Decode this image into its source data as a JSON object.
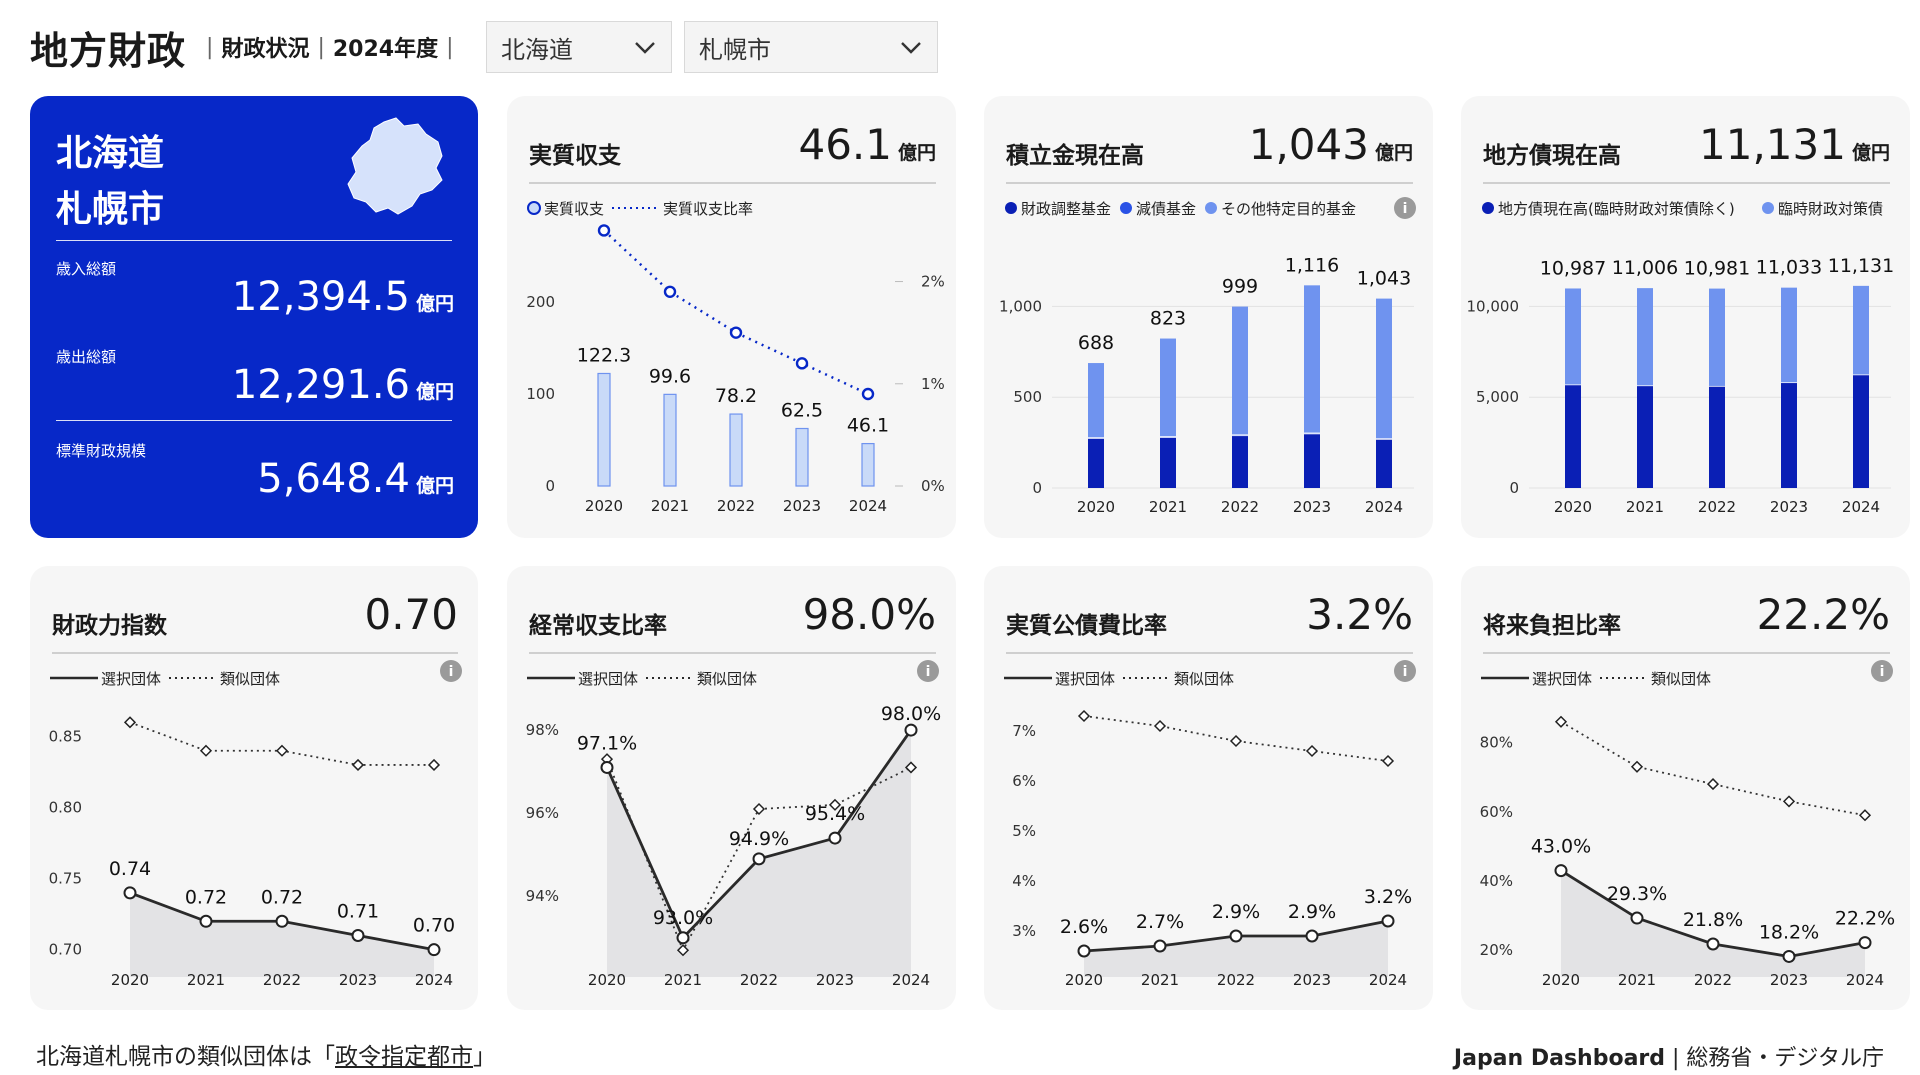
{
  "header": {
    "title": "地方財政",
    "section": "財政状況",
    "year": "2024年度",
    "prefecture_select": "北海道",
    "city_select": "札幌市"
  },
  "summary": {
    "prefecture": "北海道",
    "city": "札幌市",
    "revenue_label": "歳入総額",
    "revenue_value": "12,394.5",
    "expenditure_label": "歳出総額",
    "expenditure_value": "12,291.6",
    "standard_label": "標準財政規模",
    "standard_value": "5,648.4",
    "unit": "億円"
  },
  "cards": {
    "real_balance": {
      "title": "実質収支",
      "value": "46.1",
      "unit": "億円"
    },
    "reserve_fund": {
      "title": "積立金現在高",
      "value": "1,043",
      "unit": "億円"
    },
    "local_bond": {
      "title": "地方債現在高",
      "value": "11,131",
      "unit": "億円"
    },
    "fiscal_power": {
      "title": "財政力指数",
      "value": "0.70"
    },
    "ordinary_ratio": {
      "title": "経常収支比率",
      "value": "98.0%"
    },
    "debt_service": {
      "title": "実質公債費比率",
      "value": "3.2%"
    },
    "future_burden": {
      "title": "将来負担比率",
      "value": "22.2%"
    }
  },
  "colors": {
    "brand_blue": "#0728c8",
    "dark_blue": "#0a1fb5",
    "light_blue": "#6f93ef",
    "pale_blue": "#c9daf8",
    "line_dark": "#2a2a2a"
  },
  "chart_data": [
    {
      "id": "real_balance",
      "type": "bar",
      "categories": [
        "2020",
        "2021",
        "2022",
        "2023",
        "2024"
      ],
      "series": [
        {
          "name": "実質収支",
          "values": [
            122.3,
            99.6,
            78.2,
            62.5,
            46.1
          ]
        },
        {
          "name": "実質収支比率",
          "values": [
            2.5,
            1.9,
            1.5,
            1.2,
            0.9
          ]
        }
      ],
      "data_labels": [
        "122.3",
        "99.6",
        "78.2",
        "62.5",
        "46.1"
      ],
      "ylim": [
        0,
        250
      ],
      "yticks": [
        0,
        100,
        200
      ],
      "ytick_labels": [
        "0",
        "100",
        "200"
      ],
      "y2lim": [
        0,
        2.25
      ],
      "y2ticks": [
        0,
        1,
        2
      ],
      "y2tick_labels": [
        "0%",
        "1%",
        "2%"
      ]
    },
    {
      "id": "reserve_fund",
      "type": "bar",
      "stacked": true,
      "categories": [
        "2020",
        "2021",
        "2022",
        "2023",
        "2024"
      ],
      "series": [
        {
          "name": "財政調整基金",
          "values": [
            275,
            280,
            290,
            300,
            270
          ]
        },
        {
          "name": "減債基金",
          "values": [
            5,
            5,
            5,
            5,
            5
          ]
        },
        {
          "name": "その他特定目的基金",
          "values": [
            408,
            538,
            704,
            811,
            768
          ]
        }
      ],
      "data_labels": [
        "688",
        "823",
        "999",
        "1,116",
        "1,043"
      ],
      "ylim": [
        0,
        1250
      ],
      "yticks": [
        0,
        500,
        1000
      ],
      "ytick_labels": [
        "0",
        "500",
        "1,000"
      ]
    },
    {
      "id": "local_bond",
      "type": "bar",
      "stacked": true,
      "categories": [
        "2020",
        "2021",
        "2022",
        "2023",
        "2024"
      ],
      "series": [
        {
          "name": "地方債現在高(臨時財政対策債除く)",
          "values": [
            5700,
            5650,
            5620,
            5820,
            6250
          ]
        },
        {
          "name": "臨時財政対策債",
          "values": [
            5287,
            5356,
            5361,
            5213,
            4881
          ]
        }
      ],
      "data_labels": [
        "10,987",
        "11,006",
        "10,981",
        "11,033",
        "11,131"
      ],
      "ylim": [
        0,
        12500
      ],
      "yticks": [
        0,
        5000,
        10000
      ],
      "ytick_labels": [
        "0",
        "5,000",
        "10,000"
      ]
    },
    {
      "id": "fiscal_power",
      "type": "line",
      "categories": [
        "2020",
        "2021",
        "2022",
        "2023",
        "2024"
      ],
      "series": [
        {
          "name": "選択団体",
          "values": [
            0.74,
            0.72,
            0.72,
            0.71,
            0.7
          ]
        },
        {
          "name": "類似団体",
          "values": [
            0.86,
            0.84,
            0.84,
            0.83,
            0.83
          ]
        }
      ],
      "data_labels": [
        "0.74",
        "0.72",
        "0.72",
        "0.71",
        "0.70"
      ],
      "ylim": [
        0.685,
        0.875
      ],
      "yticks": [
        0.7,
        0.75,
        0.8,
        0.85
      ],
      "ytick_labels": [
        "0.70",
        "0.75",
        "0.80",
        "0.85"
      ]
    },
    {
      "id": "ordinary_ratio",
      "type": "line",
      "categories": [
        "2020",
        "2021",
        "2022",
        "2023",
        "2024"
      ],
      "series": [
        {
          "name": "選択団体",
          "values": [
            97.1,
            93.0,
            94.9,
            95.4,
            98.0
          ]
        },
        {
          "name": "類似団体",
          "values": [
            97.3,
            92.7,
            96.1,
            96.2,
            97.1
          ]
        }
      ],
      "data_labels": [
        "97.1%",
        "93.0%",
        "94.9%",
        "95.4%",
        "98.0%"
      ],
      "ylim": [
        92.2,
        98.7
      ],
      "yticks": [
        94,
        96,
        98
      ],
      "ytick_labels": [
        "94%",
        "96%",
        "98%"
      ]
    },
    {
      "id": "debt_service",
      "type": "line",
      "categories": [
        "2020",
        "2021",
        "2022",
        "2023",
        "2024"
      ],
      "series": [
        {
          "name": "選択団体",
          "values": [
            2.6,
            2.7,
            2.9,
            2.9,
            3.2
          ]
        },
        {
          "name": "類似団体",
          "values": [
            7.3,
            7.1,
            6.8,
            6.6,
            6.4
          ]
        }
      ],
      "data_labels": [
        "2.6%",
        "2.7%",
        "2.9%",
        "2.9%",
        "3.2%"
      ],
      "ylim": [
        2.2,
        7.6
      ],
      "yticks": [
        3,
        4,
        5,
        6,
        7
      ],
      "ytick_labels": [
        "3%",
        "4%",
        "5%",
        "6%",
        "7%"
      ]
    },
    {
      "id": "future_burden",
      "type": "line",
      "categories": [
        "2020",
        "2021",
        "2022",
        "2023",
        "2024"
      ],
      "series": [
        {
          "name": "選択団体",
          "values": [
            43.0,
            29.3,
            21.8,
            18.2,
            22.2
          ]
        },
        {
          "name": "類似団体",
          "values": [
            86.0,
            73.0,
            68.0,
            63.0,
            59.0
          ]
        }
      ],
      "data_labels": [
        "43.0%",
        "29.3%",
        "21.8%",
        "18.2%",
        "22.2%"
      ],
      "ylim": [
        14,
        92
      ],
      "yticks": [
        20,
        40,
        60,
        80
      ],
      "ytick_labels": [
        "20%",
        "40%",
        "60%",
        "80%"
      ]
    }
  ],
  "footer": {
    "prefix": "北海道札幌市の類似団体は「",
    "link": "政令指定都市",
    "suffix": "」",
    "brand": "Japan Dashboard",
    "credit": "| 総務省・デジタル庁"
  }
}
